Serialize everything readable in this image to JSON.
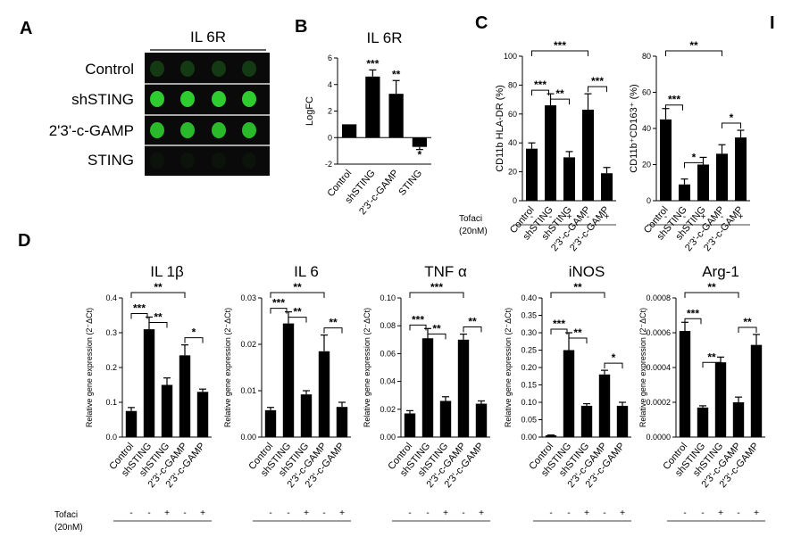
{
  "panels": {
    "A": "A",
    "B": "B",
    "C": "C",
    "D": "D",
    "I": "I"
  },
  "blot": {
    "header": "IL 6R",
    "rows": [
      "Control",
      "shSTING",
      "2'3'-c-GAMP",
      "STING"
    ],
    "intensity": [
      0.25,
      1.0,
      0.9,
      0.05
    ],
    "spot_color": "#2ecc2e"
  },
  "tofaci": {
    "label": "Tofaci",
    "dose": "(20nM)",
    "signs": [
      "-",
      "-",
      "+",
      "-",
      "+"
    ]
  },
  "chart_data": [
    {
      "id": "B",
      "type": "bar",
      "title": "IL 6R",
      "ylabel": "LogFC",
      "categories": [
        "Control",
        "shSTING",
        "2'3'-c-GAMP",
        "STING"
      ],
      "values": [
        1.0,
        4.6,
        3.3,
        -0.7
      ],
      "errors": [
        0.0,
        0.5,
        1.0,
        0.2
      ],
      "ylim": [
        -2,
        6
      ],
      "yticks": [
        -2,
        0,
        2,
        4,
        6
      ],
      "tick_labels": [
        "-2",
        "0",
        "2",
        "4",
        "6"
      ],
      "bar_sig": [
        "",
        "***",
        "**",
        "*"
      ],
      "zero_line": true
    },
    {
      "id": "C1",
      "type": "bar",
      "title": "",
      "ylabel": "CD11b HLA-DR (%)",
      "categories": [
        "Control",
        "shSTING",
        "shSTING",
        "2'3'-c-GAMP",
        "2'3'-c-GAMP"
      ],
      "values": [
        36,
        66,
        30,
        63,
        19
      ],
      "errors": [
        4,
        8,
        4,
        11,
        4
      ],
      "ylim": [
        0,
        100
      ],
      "yticks": [
        0,
        20,
        40,
        60,
        80,
        100
      ],
      "tick_labels": [
        "0",
        "20",
        "40",
        "60",
        "80",
        "100"
      ],
      "brackets": [
        {
          "from": 0,
          "to": 3,
          "label": "***",
          "level": 3
        },
        {
          "from": 0,
          "to": 1,
          "label": "***",
          "level": 2
        },
        {
          "from": 1,
          "to": 2,
          "label": "**",
          "level": 1
        },
        {
          "from": 3,
          "to": 4,
          "label": "***",
          "level": 1
        }
      ],
      "tofaci": true
    },
    {
      "id": "C2",
      "type": "bar",
      "title": "",
      "ylabel": "CD11b⁺CD163⁺ (%)",
      "categories": [
        "Control",
        "shSTING",
        "shSTING",
        "2'3'-c-GAMP",
        "2'3'-c-GAMP"
      ],
      "values": [
        45,
        9,
        20,
        26,
        35
      ],
      "errors": [
        6,
        3,
        4,
        5,
        4
      ],
      "ylim": [
        0,
        80
      ],
      "yticks": [
        0,
        20,
        40,
        60,
        80
      ],
      "tick_labels": [
        "0",
        "20",
        "40",
        "60",
        "80"
      ],
      "brackets": [
        {
          "from": 0,
          "to": 3,
          "label": "**",
          "level": 3
        },
        {
          "from": 0,
          "to": 1,
          "label": "***",
          "level": 2
        },
        {
          "from": 1,
          "to": 2,
          "label": "*",
          "level": 1
        },
        {
          "from": 3,
          "to": 4,
          "label": "*",
          "level": 1
        }
      ],
      "tofaci": true
    },
    {
      "id": "D1",
      "type": "bar",
      "title": "IL 1β",
      "ylabel": "Relative gene expression (2⁻ΔCt)",
      "categories": [
        "Control",
        "shSTING",
        "shSTING",
        "2'3'-c-GAMP",
        "2'3'-c-GAMP"
      ],
      "values": [
        0.075,
        0.31,
        0.15,
        0.235,
        0.13
      ],
      "errors": [
        0.01,
        0.035,
        0.02,
        0.03,
        0.008
      ],
      "ylim": [
        0,
        0.4
      ],
      "yticks": [
        0,
        0.1,
        0.2,
        0.3,
        0.4
      ],
      "tick_labels": [
        "0.0",
        "0.1",
        "0.2",
        "0.3",
        "0.4"
      ],
      "brackets": [
        {
          "from": 0,
          "to": 3,
          "label": "**",
          "level": 3
        },
        {
          "from": 0,
          "to": 1,
          "label": "***",
          "level": 2
        },
        {
          "from": 1,
          "to": 2,
          "label": "**",
          "level": 1
        },
        {
          "from": 3,
          "to": 4,
          "label": "*",
          "level": 1
        }
      ],
      "tofaci": true
    },
    {
      "id": "D2",
      "type": "bar",
      "title": "IL 6",
      "ylabel": "Relative gene expression (2⁻ΔCt)",
      "categories": [
        "Control",
        "shSTING",
        "shSTING",
        "2'3'-c-GAMP",
        "2'3'-c-GAMP"
      ],
      "values": [
        0.0058,
        0.0245,
        0.0092,
        0.0185,
        0.0065
      ],
      "errors": [
        0.0006,
        0.0025,
        0.0008,
        0.0035,
        0.001
      ],
      "ylim": [
        0,
        0.03
      ],
      "yticks": [
        0,
        0.01,
        0.02,
        0.03
      ],
      "tick_labels": [
        "0.00",
        "0.01",
        "0.02",
        "0.03"
      ],
      "brackets": [
        {
          "from": 0,
          "to": 3,
          "label": "**",
          "level": 3
        },
        {
          "from": 0,
          "to": 1,
          "label": "***",
          "level": 2
        },
        {
          "from": 1,
          "to": 2,
          "label": "**",
          "level": 1
        },
        {
          "from": 3,
          "to": 4,
          "label": "**",
          "level": 1
        }
      ],
      "tofaci": false
    },
    {
      "id": "D3",
      "type": "bar",
      "title": "TNF α",
      "ylabel": "Relative gene expression (2⁻ΔCt)",
      "categories": [
        "Control",
        "shSTING",
        "shSTING",
        "2'3'-c-GAMP",
        "2'3'-c-GAMP"
      ],
      "values": [
        0.017,
        0.071,
        0.026,
        0.07,
        0.024
      ],
      "errors": [
        0.002,
        0.007,
        0.003,
        0.004,
        0.002
      ],
      "ylim": [
        0,
        0.1
      ],
      "yticks": [
        0,
        0.02,
        0.04,
        0.06,
        0.08,
        0.1
      ],
      "tick_labels": [
        "0.00",
        "0.02",
        "0.04",
        "0.06",
        "0.08",
        "0.10"
      ],
      "brackets": [
        {
          "from": 0,
          "to": 3,
          "label": "***",
          "level": 3
        },
        {
          "from": 0,
          "to": 1,
          "label": "***",
          "level": 2
        },
        {
          "from": 1,
          "to": 2,
          "label": "**",
          "level": 1
        },
        {
          "from": 3,
          "to": 4,
          "label": "**",
          "level": 1
        }
      ],
      "tofaci": false
    },
    {
      "id": "D4",
      "type": "bar",
      "title": "iNOS",
      "ylabel": "Relative gene expression (2⁻ΔCt)",
      "categories": [
        "Control",
        "shSTING",
        "shSTING",
        "2'3'-c-GAMP",
        "2'3'-c-GAMP"
      ],
      "values": [
        0.005,
        0.25,
        0.09,
        0.18,
        0.09
      ],
      "errors": [
        0.001,
        0.05,
        0.006,
        0.012,
        0.01
      ],
      "ylim": [
        0,
        0.4
      ],
      "yticks": [
        0,
        0.05,
        0.1,
        0.15,
        0.2,
        0.25,
        0.3,
        0.35,
        0.4
      ],
      "tick_labels": [
        "0.00",
        "0.05",
        "0.10",
        "0.15",
        "0.20",
        "0.25",
        "0.30",
        "0.35",
        "0.40"
      ],
      "brackets": [
        {
          "from": 0,
          "to": 3,
          "label": "**",
          "level": 3
        },
        {
          "from": 0,
          "to": 1,
          "label": "***",
          "level": 2
        },
        {
          "from": 1,
          "to": 2,
          "label": "**",
          "level": 1
        },
        {
          "from": 3,
          "to": 4,
          "label": "*",
          "level": 1
        }
      ],
      "tofaci": false
    },
    {
      "id": "D5",
      "type": "bar",
      "title": "Arg-1",
      "ylabel": "Relative gene expression (2⁻ΔCt)",
      "categories": [
        "Control",
        "shSTING",
        "shSTING",
        "2'3'-c-GAMP",
        "2'3'-c-GAMP"
      ],
      "values": [
        0.00061,
        0.00017,
        0.00043,
        0.0002,
        0.00053
      ],
      "errors": [
        5e-05,
        1e-05,
        3e-05,
        3e-05,
        6e-05
      ],
      "ylim": [
        0,
        0.0008
      ],
      "yticks": [
        0,
        0.0002,
        0.0004,
        0.0006,
        0.0008
      ],
      "tick_labels": [
        "0.0000",
        "0.0002",
        "0.0004",
        "0.0006",
        "0.0008"
      ],
      "brackets": [
        {
          "from": 0,
          "to": 3,
          "label": "**",
          "level": 3
        },
        {
          "from": 0,
          "to": 1,
          "label": "***",
          "level": 2
        },
        {
          "from": 1,
          "to": 2,
          "label": "**",
          "level": 1
        },
        {
          "from": 3,
          "to": 4,
          "label": "**",
          "level": 1
        }
      ],
      "tofaci": false
    }
  ]
}
